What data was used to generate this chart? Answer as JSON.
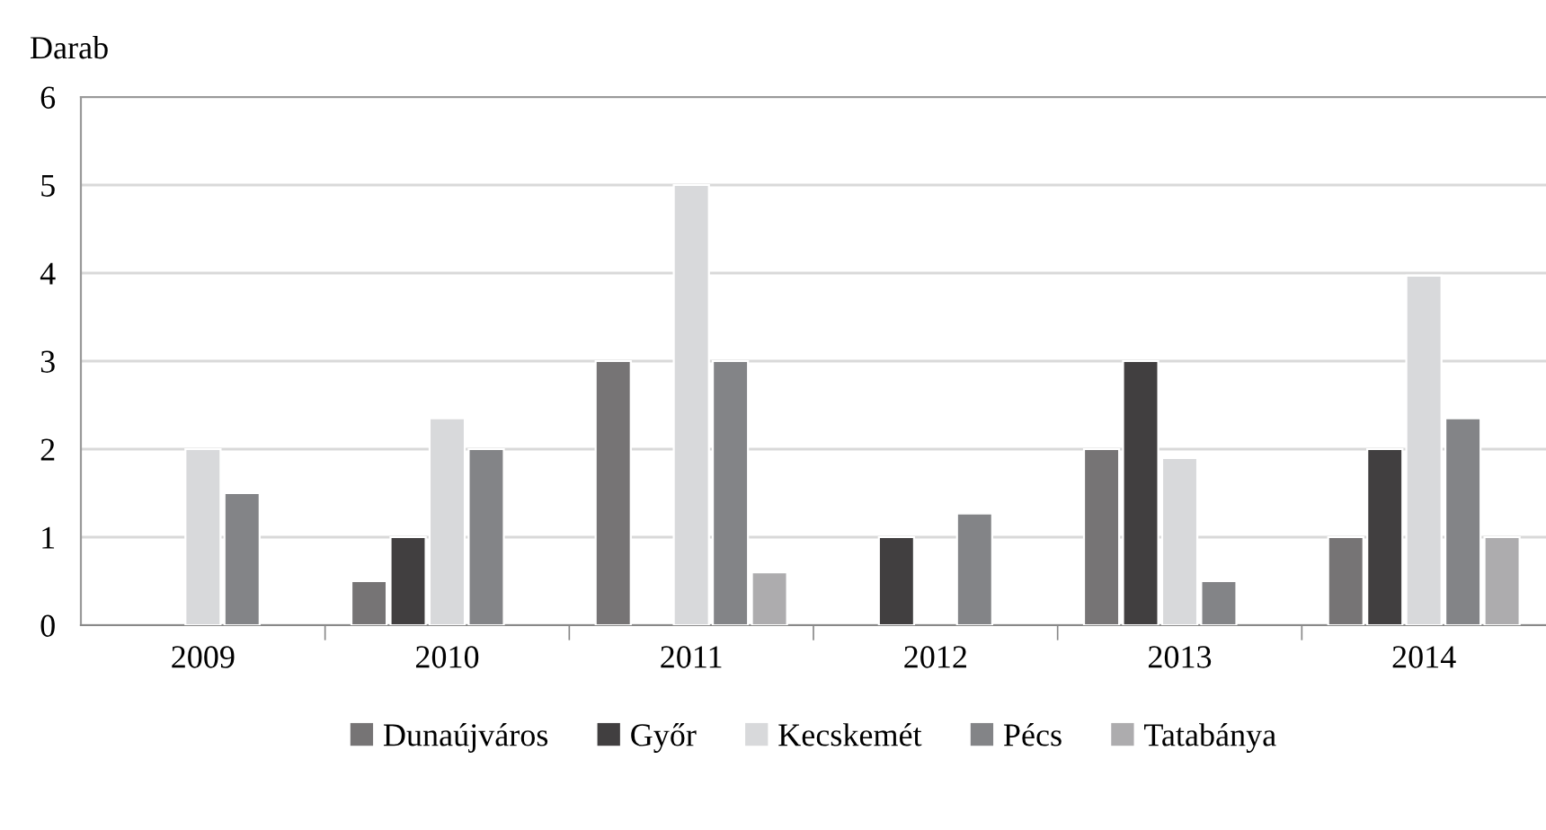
{
  "chart_data": {
    "type": "bar",
    "ylabel": "Darab",
    "categories": [
      "2009",
      "2010",
      "2011",
      "2012",
      "2013",
      "2014"
    ],
    "series": [
      {
        "name": "Dunaújváros",
        "color": "#767475",
        "values": [
          null,
          0.5,
          3,
          null,
          2,
          1
        ]
      },
      {
        "name": "Győr",
        "color": "#413f40",
        "values": [
          null,
          1,
          null,
          1,
          3,
          2
        ]
      },
      {
        "name": "Kecskemét",
        "color": "#d8d9db",
        "values": [
          2,
          2.35,
          5,
          null,
          1.9,
          3.97
        ]
      },
      {
        "name": "Pécs",
        "color": "#838487",
        "values": [
          1.5,
          2,
          3,
          1.27,
          0.5,
          2.35
        ]
      },
      {
        "name": "Tatabánya",
        "color": "#adacae",
        "values": [
          null,
          null,
          0.6,
          null,
          null,
          1
        ]
      }
    ],
    "ylim": [
      0,
      6
    ],
    "yticks": [
      0,
      1,
      2,
      3,
      4,
      5,
      6
    ],
    "grid": "y",
    "legend": "bottom"
  }
}
